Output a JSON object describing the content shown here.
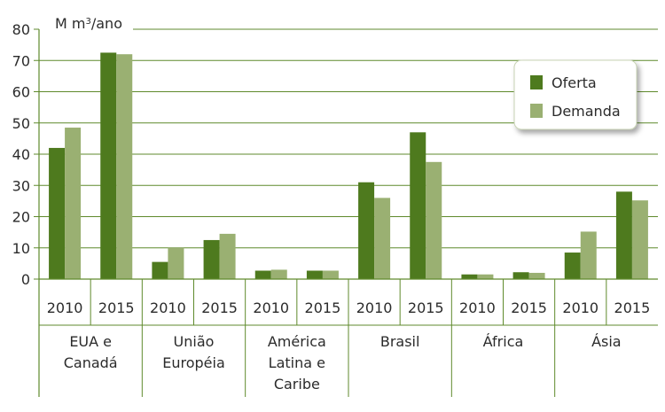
{
  "chart_data": {
    "type": "bar",
    "unit_label_main": "M m",
    "unit_label_sup": "3",
    "unit_label_tail": "/ano",
    "ylim": [
      0,
      80
    ],
    "yticks": [
      "0",
      "10",
      "20",
      "30",
      "40",
      "50",
      "60",
      "70",
      "80"
    ],
    "groups": [
      {
        "lines": [
          "EUA e",
          "Canadá"
        ],
        "years": [
          "2010",
          "2015"
        ],
        "oferta": [
          42,
          72.5
        ],
        "demanda": [
          48.5,
          72
        ]
      },
      {
        "lines": [
          "União",
          "Européia"
        ],
        "years": [
          "2010",
          "2015"
        ],
        "oferta": [
          5.5,
          12.5
        ],
        "demanda": [
          10,
          14.5
        ]
      },
      {
        "lines": [
          "América",
          "Latina e",
          "Caribe"
        ],
        "years": [
          "2010",
          "2015"
        ],
        "oferta": [
          2.7,
          2.7
        ],
        "demanda": [
          3,
          2.7
        ]
      },
      {
        "lines": [
          "Brasil"
        ],
        "years": [
          "2010",
          "2015"
        ],
        "oferta": [
          31,
          47
        ],
        "demanda": [
          26,
          37.5
        ]
      },
      {
        "lines": [
          "África"
        ],
        "years": [
          "2010",
          "2015"
        ],
        "oferta": [
          1.5,
          2.2
        ],
        "demanda": [
          1.5,
          2
        ]
      },
      {
        "lines": [
          "Ásia"
        ],
        "years": [
          "2010",
          "2015"
        ],
        "oferta": [
          8.5,
          28
        ],
        "demanda": [
          15.2,
          25.2
        ]
      }
    ],
    "series": [
      {
        "name": "Oferta",
        "color": "#4e7a1e"
      },
      {
        "name": "Demanda",
        "color": "#9ab072"
      }
    ],
    "grid": true,
    "legend_position": "top-right"
  }
}
